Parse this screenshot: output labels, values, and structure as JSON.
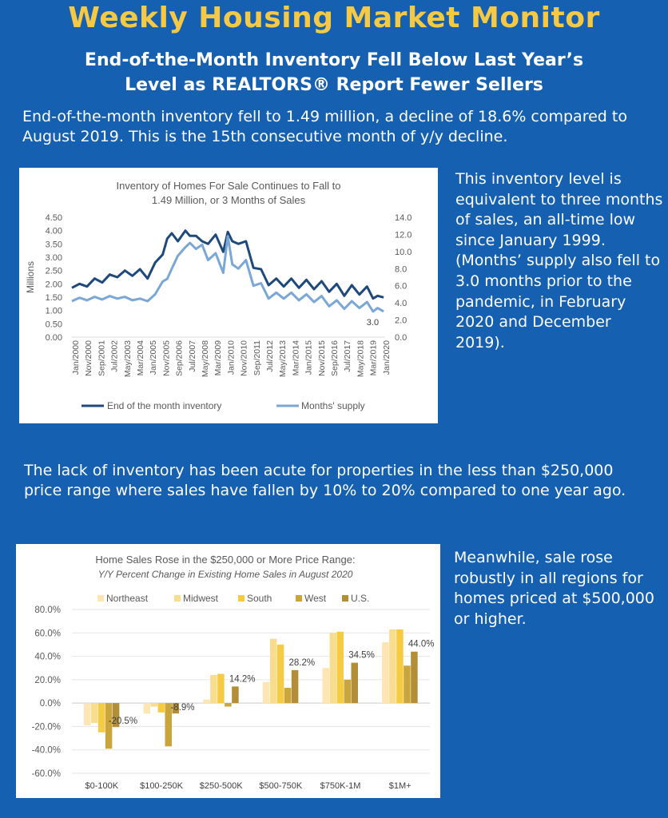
{
  "header": {
    "title": "Weekly Housing Market Monitor",
    "subtitle_line1": "End-of-the-Month Inventory Fell Below Last Year’s",
    "subtitle_line2": "Level as REALTORS® Report Fewer Sellers"
  },
  "intro": "End-of-the-month inventory fell to 1.49 million, a decline of 18.6% compared to August 2019. This is the 15th consecutive month of y/y decline.",
  "sidebar1": "This inventory level is equivalent to three months of sales, an all-time low since January 1999. (Months’ supply also fell to 3.0 months prior to the pandemic, in February 2020 and December 2019).",
  "para2": "The lack of inventory has been acute for properties in the less than $250,000 price range where sales have fallen by 10% to 20% compared to one year ago.",
  "sidebar2": "Meanwhile, sale rose robustly in all regions for homes priced at $500,000 or higher.",
  "chart_data": [
    {
      "type": "line",
      "title_line1": "Inventory of Homes For Sale Continues to Fall to",
      "title_line2": "1.49 Million, or 3 Months of Sales",
      "ylabel": "Millions",
      "ylim": [
        0,
        4.5
      ],
      "yticks": [
        "0.00",
        "0.50",
        "1.00",
        "1.50",
        "2.00",
        "2.50",
        "3.00",
        "3.50",
        "4.00",
        "4.50"
      ],
      "y2lim": [
        0,
        14
      ],
      "y2ticks": [
        "0.0",
        "2.0",
        "4.0",
        "6.0",
        "8.0",
        "10.0",
        "12.0",
        "14.0"
      ],
      "x_tick_labels": [
        "Jan/2000",
        "Nov/2000",
        "Sep/2001",
        "Jul/2002",
        "May/2003",
        "Mar/2004",
        "Jan/2005",
        "Nov/2005",
        "Sep/2006",
        "Jul/2007",
        "May/2008",
        "Mar/2009",
        "Jan/2010",
        "Nov/2010",
        "Sep/2011",
        "Jul/2012",
        "May/2013",
        "Mar/2014",
        "Jan/2015",
        "Nov/2015",
        "Sep/2016",
        "Jul/2017",
        "May/2018",
        "Mar/2019",
        "Jan/2020"
      ],
      "legend_position": "bottom",
      "annotation": "3.0",
      "series": [
        {
          "name": "End of the month inventory",
          "axis": "left",
          "color": "#1f497d",
          "x": [
            2000.0,
            2000.5,
            2001.0,
            2001.5,
            2002.0,
            2002.5,
            2003.0,
            2003.5,
            2004.0,
            2004.5,
            2005.0,
            2005.5,
            2006.0,
            2006.3,
            2006.6,
            2007.0,
            2007.5,
            2007.8,
            2008.2,
            2008.6,
            2009.0,
            2009.5,
            2010.0,
            2010.3,
            2010.6,
            2011.0,
            2011.5,
            2012.0,
            2012.5,
            2013.0,
            2013.5,
            2014.0,
            2014.5,
            2015.0,
            2015.5,
            2016.0,
            2016.5,
            2017.0,
            2017.5,
            2018.0,
            2018.5,
            2019.0,
            2019.5,
            2019.9,
            2020.2,
            2020.6
          ],
          "values": [
            1.85,
            2.0,
            1.9,
            2.2,
            2.05,
            2.35,
            2.25,
            2.5,
            2.3,
            2.55,
            2.2,
            2.8,
            3.1,
            3.7,
            3.9,
            3.6,
            4.0,
            3.8,
            3.8,
            3.6,
            3.5,
            3.85,
            3.2,
            3.95,
            3.6,
            3.5,
            3.6,
            2.6,
            2.55,
            1.95,
            2.2,
            1.9,
            2.2,
            1.85,
            2.15,
            1.8,
            2.1,
            1.7,
            2.0,
            1.55,
            1.95,
            1.6,
            1.9,
            1.45,
            1.55,
            1.49
          ]
        },
        {
          "name": "Months' supply",
          "axis": "right",
          "color": "#7aa7d6",
          "x": [
            2000.0,
            2000.5,
            2001.0,
            2001.5,
            2002.0,
            2002.5,
            2003.0,
            2003.5,
            2004.0,
            2004.5,
            2005.0,
            2005.5,
            2006.0,
            2006.3,
            2006.6,
            2007.0,
            2007.5,
            2007.8,
            2008.2,
            2008.6,
            2009.0,
            2009.5,
            2010.0,
            2010.3,
            2010.6,
            2011.0,
            2011.5,
            2012.0,
            2012.5,
            2013.0,
            2013.5,
            2014.0,
            2014.5,
            2015.0,
            2015.5,
            2016.0,
            2016.5,
            2017.0,
            2017.5,
            2018.0,
            2018.5,
            2019.0,
            2019.5,
            2019.9,
            2020.2,
            2020.6
          ],
          "values": [
            4.2,
            4.6,
            4.3,
            4.7,
            4.4,
            4.8,
            4.5,
            4.7,
            4.3,
            4.5,
            4.2,
            5.0,
            6.5,
            6.8,
            8.0,
            9.5,
            10.5,
            11.0,
            10.3,
            10.8,
            9.0,
            9.8,
            7.5,
            11.8,
            8.5,
            8.0,
            9.0,
            6.0,
            6.3,
            4.5,
            5.2,
            4.5,
            5.2,
            4.3,
            5.0,
            4.1,
            4.8,
            3.6,
            4.3,
            3.3,
            4.2,
            3.4,
            4.1,
            3.0,
            3.4,
            3.0
          ]
        }
      ]
    },
    {
      "type": "bar",
      "title_line1": "Home Sales Rose in the $250,000 or More Price Range:",
      "title_line2": "Y/Y Percent Change in Existing Home Sales in August 2020",
      "categories": [
        "$0-100K",
        "$100-250K",
        "$250-500K",
        "$500-750K",
        "$750K-1M",
        "$1M+"
      ],
      "ylim": [
        -60,
        80
      ],
      "yticks": [
        "-60.0%",
        "-40.0%",
        "-20.0%",
        "0.0%",
        "20.0%",
        "40.0%",
        "60.0%",
        "80.0%"
      ],
      "legend_position": "top",
      "series": [
        {
          "name": "Northeast",
          "color": "#fde5b4",
          "values": [
            -19,
            -9,
            3,
            18,
            30,
            52
          ]
        },
        {
          "name": "Midwest",
          "color": "#f8dd8e",
          "values": [
            -17,
            -3,
            24,
            55,
            60,
            63
          ]
        },
        {
          "name": "South",
          "color": "#f4cb42",
          "values": [
            -25,
            -8,
            25,
            50,
            61,
            63
          ]
        },
        {
          "name": "West",
          "color": "#c9a53c",
          "values": [
            -39,
            -37,
            -3,
            13,
            20,
            32
          ]
        },
        {
          "name": "U.S.",
          "color": "#b38e36",
          "values": [
            -20.5,
            -8.9,
            14.2,
            28.2,
            34.5,
            44.0
          ]
        }
      ],
      "us_labels": [
        "-20.5%",
        "-8.9%",
        "14.2%",
        "28.2%",
        "34.5%",
        "44.0%"
      ]
    }
  ]
}
